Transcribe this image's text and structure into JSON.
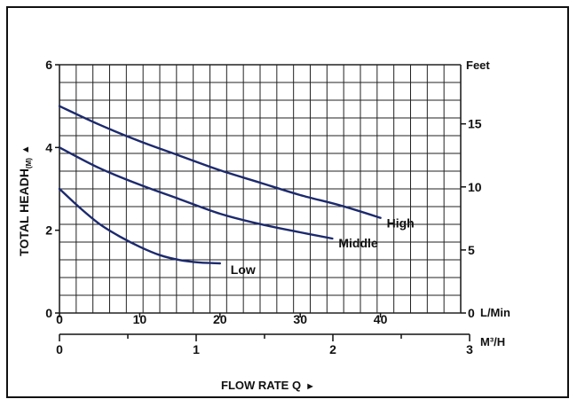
{
  "chart_data": {
    "type": "line",
    "xlabel": "FLOW RATE Q",
    "ylabel": "TOTAL HEADH",
    "ylabel_sub": "(M)",
    "y_left": {
      "unit": "",
      "ticks": [
        0,
        2,
        4,
        6
      ],
      "ylim": [
        0,
        6
      ]
    },
    "y_right": {
      "unit": "Feet",
      "ticks": [
        0,
        5,
        10,
        15
      ],
      "ylim": [
        0,
        19.69
      ]
    },
    "x_bottom_lmin": {
      "unit": "L/Min",
      "ticks": [
        0,
        10,
        20,
        30,
        40
      ],
      "xlim": [
        0,
        50
      ]
    },
    "x_bottom_m3h": {
      "unit": "M³/H",
      "ticks": [
        0,
        1,
        2,
        3
      ],
      "xlim": [
        0,
        3
      ]
    },
    "grid": true,
    "series": [
      {
        "name": "High",
        "color": "#1c2a6e",
        "x": [
          0,
          5,
          10,
          15,
          20,
          25,
          30,
          35,
          40
        ],
        "y": [
          5.0,
          4.55,
          4.15,
          3.8,
          3.45,
          3.15,
          2.85,
          2.6,
          2.3
        ]
      },
      {
        "name": "Middle",
        "color": "#1c2a6e",
        "x": [
          0,
          5,
          10,
          15,
          20,
          25,
          30,
          34
        ],
        "y": [
          4.0,
          3.5,
          3.1,
          2.75,
          2.4,
          2.15,
          1.95,
          1.8
        ]
      },
      {
        "name": "Low",
        "color": "#1c2a6e",
        "x": [
          0,
          2.5,
          5,
          7.5,
          10,
          12.5,
          15,
          17.5,
          20
        ],
        "y": [
          3.0,
          2.55,
          2.15,
          1.85,
          1.6,
          1.4,
          1.28,
          1.22,
          1.2
        ]
      }
    ]
  }
}
